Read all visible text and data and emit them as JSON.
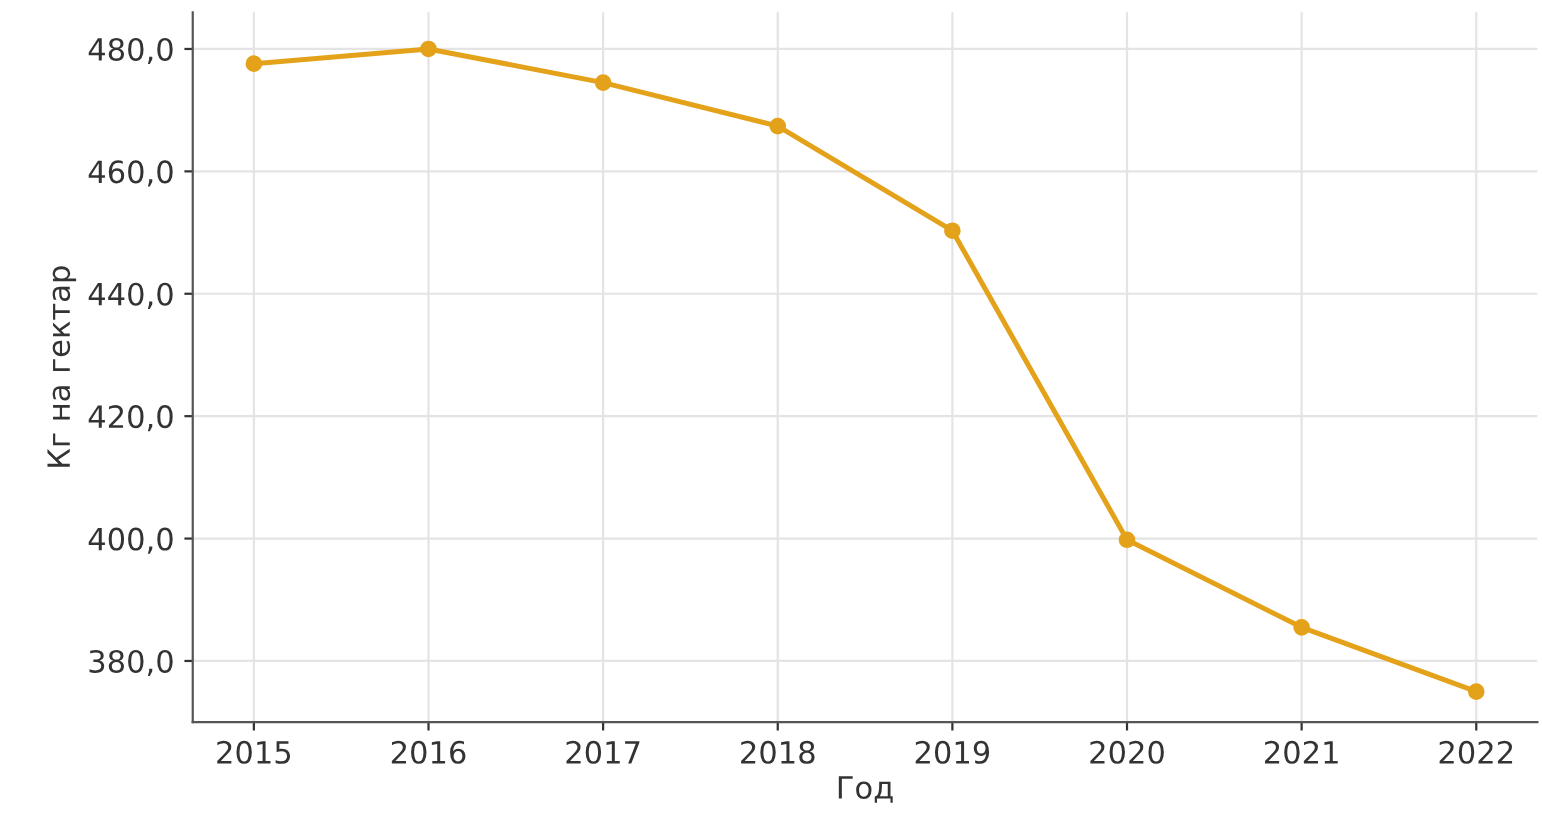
{
  "chart_data": {
    "type": "line",
    "xlabel": "Год",
    "ylabel": "Кг на гектар",
    "x": [
      2015,
      2016,
      2017,
      2018,
      2019,
      2020,
      2021,
      2022
    ],
    "series": [
      {
        "color": "#e3a21a",
        "values": [
          477.6,
          480.0,
          474.5,
          467.4,
          450.3,
          399.8,
          385.5,
          375.0
        ]
      }
    ],
    "xlim": [
      2014.65,
      2022.35
    ],
    "ylim": [
      370,
      486
    ],
    "xticks": [
      2015,
      2016,
      2017,
      2018,
      2019,
      2020,
      2021,
      2022
    ],
    "yticks": [
      {
        "value": 380,
        "label": "380,0"
      },
      {
        "value": 400,
        "label": "400,0"
      },
      {
        "value": 420,
        "label": "420,0"
      },
      {
        "value": 440,
        "label": "440,0"
      },
      {
        "value": 460,
        "label": "460,0"
      },
      {
        "value": 480,
        "label": "480,0"
      }
    ],
    "grid": true,
    "marker": "circle",
    "line_style": "solid"
  }
}
